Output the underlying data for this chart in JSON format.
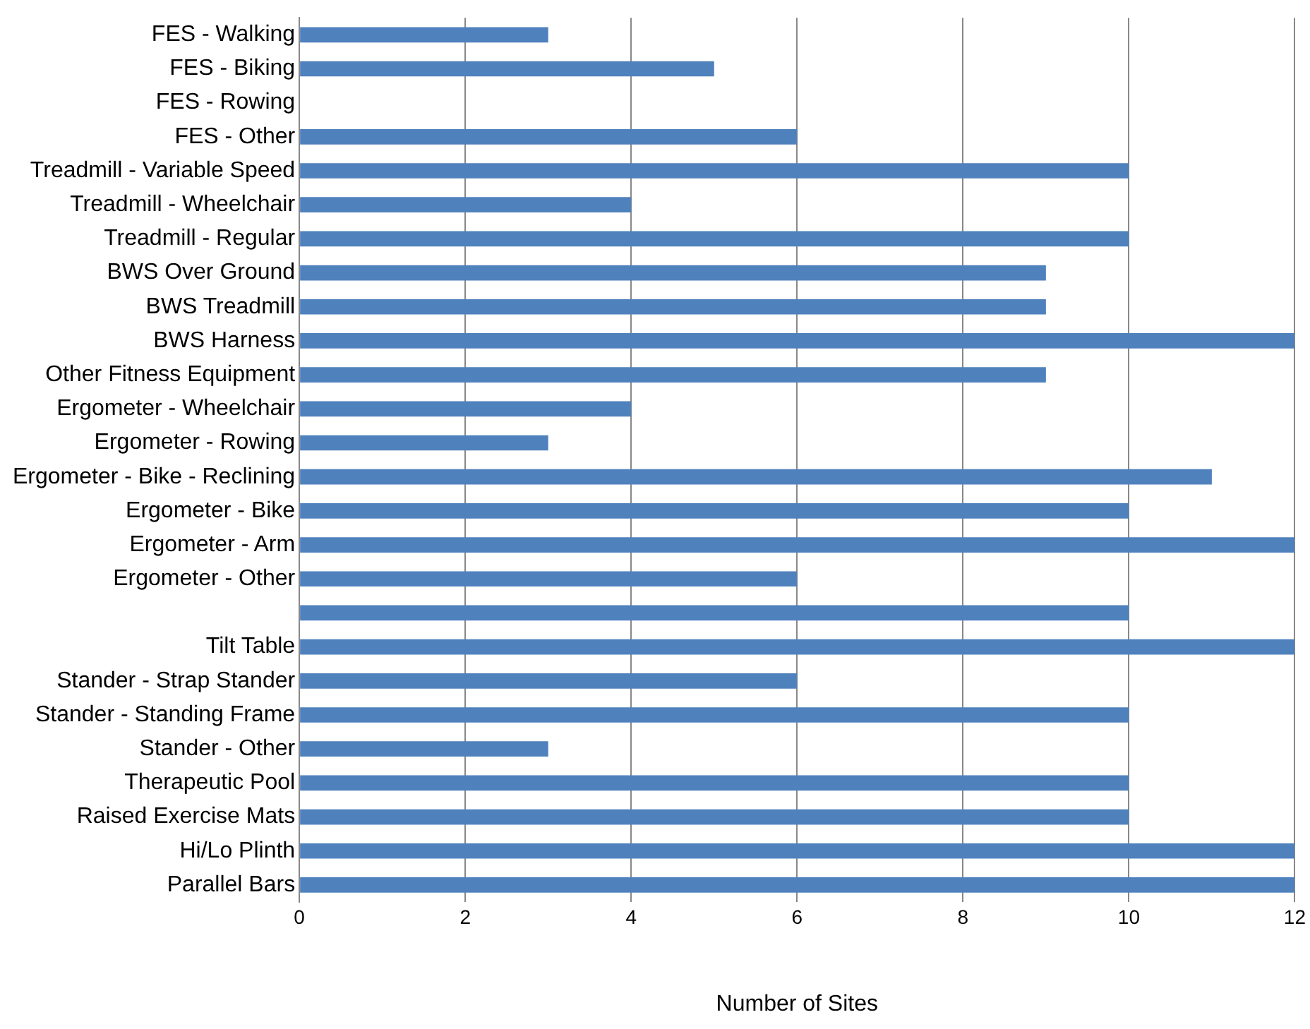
{
  "chart_data": {
    "type": "bar",
    "orientation": "horizontal",
    "xlabel": "Number of Sites",
    "categories": [
      "FES - Walking",
      "FES - Biking",
      "FES - Rowing",
      "FES - Other",
      "Treadmill - Variable Speed",
      "Treadmill - Wheelchair",
      "Treadmill - Regular",
      "BWS Over Ground",
      "BWS Treadmill",
      "BWS Harness",
      "Other Fitness Equipment",
      "Ergometer - Wheelchair",
      "Ergometer - Rowing",
      "Ergometer - Bike - Reclining",
      "Ergometer - Bike",
      "Ergometer - Arm",
      "Ergometer - Other",
      null,
      "Tilt Table",
      "Stander - Strap Stander",
      "Stander - Standing Frame",
      "Stander - Other",
      "Therapeutic Pool",
      "Raised Exercise Mats",
      "Hi/Lo Plinth",
      "Parallel Bars"
    ],
    "values": [
      3,
      5,
      0,
      6,
      10,
      4,
      10,
      9,
      9,
      12,
      9,
      4,
      3,
      11,
      10,
      12,
      6,
      10,
      12,
      6,
      10,
      3,
      10,
      10,
      12,
      12
    ],
    "color": "#4f81bd",
    "xlim": [
      0,
      12
    ],
    "xticks": [
      0,
      2,
      4,
      6,
      8,
      10,
      12
    ],
    "grid": "x",
    "legend": false
  }
}
